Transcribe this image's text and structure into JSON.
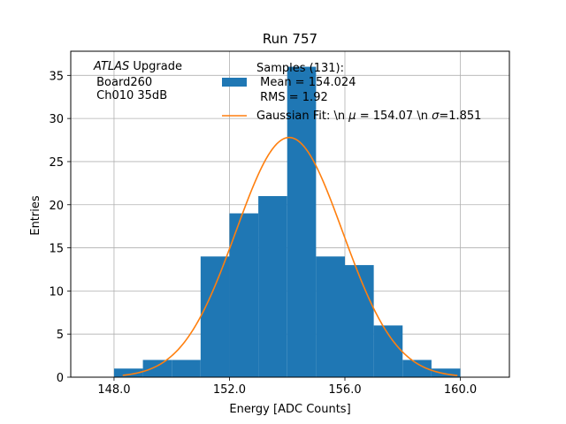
{
  "chart_data": {
    "type": "bar",
    "title": "Run 757",
    "xlabel": "Energy [ADC Counts]",
    "ylabel": "Entries",
    "xlim": [
      146.5,
      161.7
    ],
    "ylim": [
      0,
      37.8
    ],
    "x_ticks": [
      148.0,
      152.0,
      156.0,
      160.0
    ],
    "x_tick_labels": [
      "148.0",
      "152.0",
      "156.0",
      "160.0"
    ],
    "y_ticks": [
      0,
      5,
      10,
      15,
      20,
      25,
      30,
      35
    ],
    "y_tick_labels": [
      "0",
      "5",
      "10",
      "15",
      "20",
      "25",
      "30",
      "35"
    ],
    "grid": true,
    "histogram": {
      "bin_edges": [
        148,
        149,
        150,
        151,
        152,
        153,
        154,
        155,
        156,
        157,
        158,
        159,
        160
      ],
      "counts": [
        1,
        2,
        2,
        14,
        19,
        21,
        36,
        14,
        13,
        6,
        2,
        1
      ],
      "color": "#1f77b4"
    },
    "fit": {
      "mu": 154.07,
      "sigma": 1.851,
      "amplitude": 27.8,
      "x_range": [
        148.3,
        159.9
      ],
      "color": "#ff7f0e"
    },
    "annotation": {
      "line1_italic": "ATLAS",
      "line1_rest": " Upgrade",
      "line2": " Board260",
      "line3": " Ch010 35dB"
    },
    "legend": {
      "placement": "top-right",
      "samples_line1": "Samples (131):",
      "samples_line2": " Mean = 154.024",
      "samples_line3": " RMS = 1.92",
      "fit_label_prefix": "Gaussian Fit: \\n ",
      "fit_mu_symbol": "μ",
      "fit_mu_text": " = 154.07 \\n ",
      "fit_sigma_symbol": "σ",
      "fit_sigma_text": "=1.851"
    }
  }
}
